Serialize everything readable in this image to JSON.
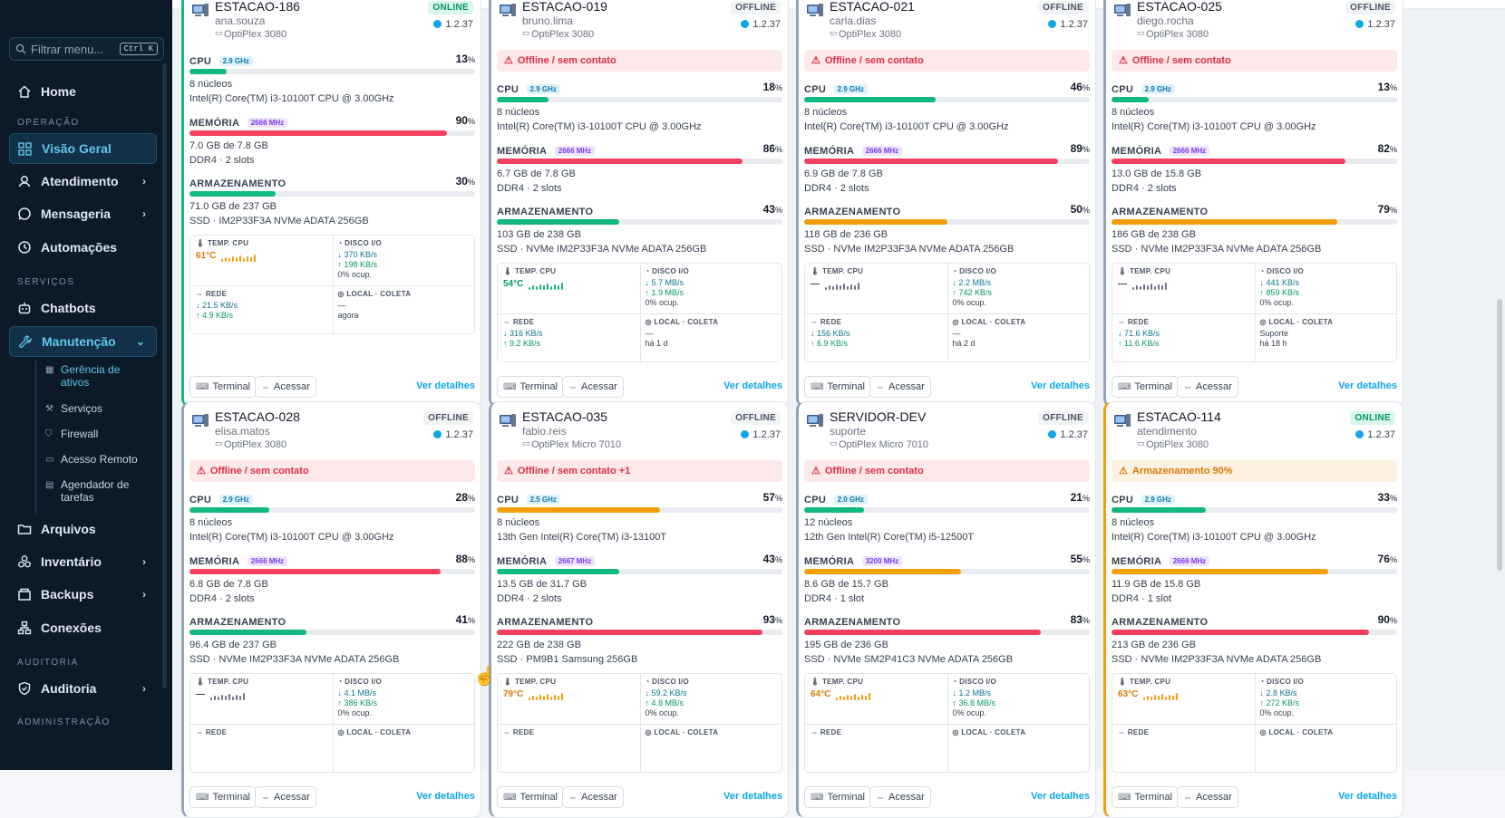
{
  "sidebar": {
    "filter_placeholder": "Filtrar menu...",
    "filter_shortcut": "Ctrl K",
    "home": "Home",
    "sec_operacao": "OPERAÇÃO",
    "visao_geral": "Visão Geral",
    "atendimento": "Atendimento",
    "mensageria": "Mensageria",
    "automacoes": "Automações",
    "sec_servicos": "SERVIÇOS",
    "chatbots": "Chatbots",
    "manutencao": "Manutenção",
    "sub_gerencia_1": "Gerência de",
    "sub_gerencia_2": "ativos",
    "sub_servicos": "Serviços",
    "sub_firewall": "Firewall",
    "sub_acesso": "Acesso Remoto",
    "sub_agendador_1": "Agendador de",
    "sub_agendador_2": "tarefas",
    "arquivos": "Arquivos",
    "inventario": "Inventário",
    "backups": "Backups",
    "conexoes": "Conexões",
    "sec_auditoria": "AUDITORIA",
    "auditoria": "Auditoria",
    "sec_admin": "ADMINISTRAÇÃO"
  },
  "labels": {
    "cpu": "CPU",
    "mem": "MEMÓRIA",
    "stor": "ARMAZENAMENTO",
    "temp": "TEMP. CPU",
    "disk": "DISCO I/O",
    "rede": "REDE",
    "local": "LOCAL · COLETA",
    "terminal": "Terminal",
    "acessar": "Acessar",
    "detalhes": "Ver detalhes"
  },
  "colors": {
    "green": "#10b981",
    "red": "#f43f5e",
    "orange": "#f59e0b",
    "accent": "#0ea5e9"
  },
  "cards": [
    {
      "name": "ESTACAO-186",
      "user": "ana.souza",
      "model": "OptiPlex 3080",
      "status": "ONLINE",
      "version": "1.2.37",
      "alert": "",
      "alert_type": "",
      "cpu": {
        "pct": 13,
        "pct_text": "13",
        "clock": "2.9 GHz",
        "l1": "8 núcleos",
        "l2": "Intel(R) Core(TM) i3-10100T CPU @ 3.00GHz",
        "color": "green"
      },
      "mem": {
        "pct": 90,
        "pct_text": "90",
        "clock": "2666 MHz",
        "l1": "7.0 GB de 7.8 GB",
        "l2": "DDR4 · 2 slots",
        "color": "red"
      },
      "stor": {
        "pct": 30,
        "pct_text": "30",
        "l1": "71.0 GB de 237 GB",
        "l2": "SSD · IM2P33F3A NVMe ADATA 256GB",
        "color": "green"
      },
      "temp": "61°C",
      "temp_color": "orange",
      "disk_r": "↓ 370 KB/s",
      "disk_w": "↑ 198 KB/s",
      "disk_occ": "0% ocup.",
      "net_d": "↓ 21.5 KB/s",
      "net_u": "↑ 4.9 KB/s",
      "local": "—",
      "coleta": "agora"
    },
    {
      "name": "ESTACAO-019",
      "user": "bruno.lima",
      "model": "OptiPlex 3080",
      "status": "OFFLINE",
      "version": "1.2.37",
      "alert": "Offline / sem contato",
      "alert_type": "offline",
      "cpu": {
        "pct": 18,
        "pct_text": "18",
        "clock": "2.9 GHz",
        "l1": "8 núcleos",
        "l2": "Intel(R) Core(TM) i3-10100T CPU @ 3.00GHz",
        "color": "green"
      },
      "mem": {
        "pct": 86,
        "pct_text": "86",
        "clock": "2666 MHz",
        "l1": "6.7 GB de 7.8 GB",
        "l2": "DDR4 · 2 slots",
        "color": "red"
      },
      "stor": {
        "pct": 43,
        "pct_text": "43",
        "l1": "103 GB de 238 GB",
        "l2": "SSD · NVMe IM2P33F3A NVMe ADATA 256GB",
        "color": "green"
      },
      "temp": "54°C",
      "temp_color": "green",
      "disk_r": "↓ 5.7 MB/s",
      "disk_w": "↑ 1.9 MB/s",
      "disk_occ": "0% ocup.",
      "net_d": "↓ 316 KB/s",
      "net_u": "↑ 9.2 KB/s",
      "local": "—",
      "coleta": "há 1 d"
    },
    {
      "name": "ESTACAO-021",
      "user": "carla.dias",
      "model": "OptiPlex 3080",
      "status": "OFFLINE",
      "version": "1.2.37",
      "alert": "Offline / sem contato",
      "alert_type": "offline",
      "cpu": {
        "pct": 46,
        "pct_text": "46",
        "clock": "2.9 GHz",
        "l1": "8 núcleos",
        "l2": "Intel(R) Core(TM) i3-10100T CPU @ 3.00GHz",
        "color": "green"
      },
      "mem": {
        "pct": 89,
        "pct_text": "89",
        "clock": "2666 MHz",
        "l1": "6.9 GB de 7.8 GB",
        "l2": "DDR4 · 2 slots",
        "color": "red"
      },
      "stor": {
        "pct": 50,
        "pct_text": "50",
        "l1": "118 GB de 236 GB",
        "l2": "SSD · NVMe IM2P33F3A NVMe ADATA 256GB",
        "color": "orange"
      },
      "temp": "—",
      "temp_color": "gray",
      "disk_r": "↓ 2.2 MB/s",
      "disk_w": "↑ 742 KB/s",
      "disk_occ": "0% ocup.",
      "net_d": "↓ 156 KB/s",
      "net_u": "↑ 6.9 KB/s",
      "local": "—",
      "coleta": "há 2 d"
    },
    {
      "name": "ESTACAO-025",
      "user": "diego.rocha",
      "model": "OptiPlex 3080",
      "status": "OFFLINE",
      "version": "1.2.37",
      "alert": "Offline / sem contato",
      "alert_type": "offline",
      "cpu": {
        "pct": 13,
        "pct_text": "13",
        "clock": "2.9 GHz",
        "l1": "8 núcleos",
        "l2": "Intel(R) Core(TM) i3-10100T CPU @ 3.00GHz",
        "color": "green"
      },
      "mem": {
        "pct": 82,
        "pct_text": "82",
        "clock": "2666 MHz",
        "l1": "13.0 GB de 15.8 GB",
        "l2": "DDR4 · 2 slots",
        "color": "red"
      },
      "stor": {
        "pct": 79,
        "pct_text": "79",
        "l1": "186 GB de 238 GB",
        "l2": "SSD · NVMe IM2P33F3A NVMe ADATA 256GB",
        "color": "orange"
      },
      "temp": "—",
      "temp_color": "gray",
      "disk_r": "↓ 441 KB/s",
      "disk_w": "↑ 859 KB/s",
      "disk_occ": "0% ocup.",
      "net_d": "↓ 71.6 KB/s",
      "net_u": "↑ 11.6 KB/s",
      "local": "Suporte",
      "coleta": "há 18 h"
    },
    {
      "name": "ESTACAO-028",
      "user": "elisa.matos",
      "model": "OptiPlex 3080",
      "status": "OFFLINE",
      "version": "1.2.37",
      "alert": "Offline / sem contato",
      "alert_type": "offline",
      "cpu": {
        "pct": 28,
        "pct_text": "28",
        "clock": "2.9 GHz",
        "l1": "8 núcleos",
        "l2": "Intel(R) Core(TM) i3-10100T CPU @ 3.00GHz",
        "color": "green"
      },
      "mem": {
        "pct": 88,
        "pct_text": "88",
        "clock": "2666 MHz",
        "l1": "6.8 GB de 7.8 GB",
        "l2": "DDR4 · 2 slots",
        "color": "red"
      },
      "stor": {
        "pct": 41,
        "pct_text": "41",
        "l1": "96.4 GB de 237 GB",
        "l2": "SSD · NVMe IM2P33F3A NVMe ADATA 256GB",
        "color": "green"
      },
      "temp": "—",
      "temp_color": "gray",
      "disk_r": "↓ 4.1 MB/s",
      "disk_w": "↑ 386 KB/s",
      "disk_occ": "0% ocup.",
      "net_d": "",
      "net_u": "",
      "local": "",
      "coleta": ""
    },
    {
      "name": "ESTACAO-035",
      "user": "fabio.reis",
      "model": "OptiPlex Micro 7010",
      "status": "OFFLINE",
      "version": "1.2.37",
      "alert": "Offline / sem contato +1",
      "alert_type": "offline",
      "cpu": {
        "pct": 57,
        "pct_text": "57",
        "clock": "2.5 GHz",
        "l1": "8 núcleos",
        "l2": "13th Gen Intel(R) Core(TM) i3-13100T",
        "color": "orange"
      },
      "mem": {
        "pct": 43,
        "pct_text": "43",
        "clock": "2667 MHz",
        "l1": "13.5 GB de 31.7 GB",
        "l2": "DDR4 · 2 slots",
        "color": "green"
      },
      "stor": {
        "pct": 93,
        "pct_text": "93",
        "l1": "222 GB de 238 GB",
        "l2": "SSD · PM9B1 Samsung 256GB",
        "color": "red"
      },
      "temp": "79°C",
      "temp_color": "orange",
      "disk_r": "↓ 59.2 KB/s",
      "disk_w": "↑ 4.8 MB/s",
      "disk_occ": "0% ocup.",
      "net_d": "",
      "net_u": "",
      "local": "",
      "coleta": ""
    },
    {
      "name": "SERVIDOR-DEV",
      "user": "suporte",
      "model": "OptiPlex Micro 7010",
      "status": "OFFLINE",
      "version": "1.2.37",
      "alert": "Offline / sem contato",
      "alert_type": "offline",
      "cpu": {
        "pct": 21,
        "pct_text": "21",
        "clock": "2.0 GHz",
        "l1": "12 núcleos",
        "l2": "12th Gen Intel(R) Core(TM) i5-12500T",
        "color": "green"
      },
      "mem": {
        "pct": 55,
        "pct_text": "55",
        "clock": "3200 MHz",
        "l1": "8.6 GB de 15.7 GB",
        "l2": "DDR4 · 1 slot",
        "color": "orange"
      },
      "stor": {
        "pct": 83,
        "pct_text": "83",
        "l1": "195 GB de 236 GB",
        "l2": "SSD · NVMe SM2P41C3 NVMe ADATA 256GB",
        "color": "red"
      },
      "temp": "64°C",
      "temp_color": "orange",
      "disk_r": "↓ 1.2 MB/s",
      "disk_w": "↑ 36.8 MB/s",
      "disk_occ": "0% ocup.",
      "net_d": "",
      "net_u": "",
      "local": "",
      "coleta": ""
    },
    {
      "name": "ESTACAO-114",
      "user": "atendimento",
      "model": "OptiPlex 3080",
      "status": "ONLINE",
      "version": "1.2.37",
      "alert": "Armazenamento 90%",
      "alert_type": "warn",
      "cpu": {
        "pct": 33,
        "pct_text": "33",
        "clock": "2.9 GHz",
        "l1": "8 núcleos",
        "l2": "Intel(R) Core(TM) i3-10100T CPU @ 3.00GHz",
        "color": "green"
      },
      "mem": {
        "pct": 76,
        "pct_text": "76",
        "clock": "2666 MHz",
        "l1": "11.9 GB de 15.8 GB",
        "l2": "DDR4 · 1 slot",
        "color": "orange"
      },
      "stor": {
        "pct": 90,
        "pct_text": "90",
        "l1": "213 GB de 236 GB",
        "l2": "SSD · NVMe IM2P33F3A NVMe ADATA 256GB",
        "color": "red"
      },
      "temp": "63°C",
      "temp_color": "orange",
      "disk_r": "↓ 2.8 KB/s",
      "disk_w": "↑ 272 KB/s",
      "disk_occ": "0% ocup.",
      "net_d": "",
      "net_u": "",
      "local": "",
      "coleta": ""
    }
  ]
}
